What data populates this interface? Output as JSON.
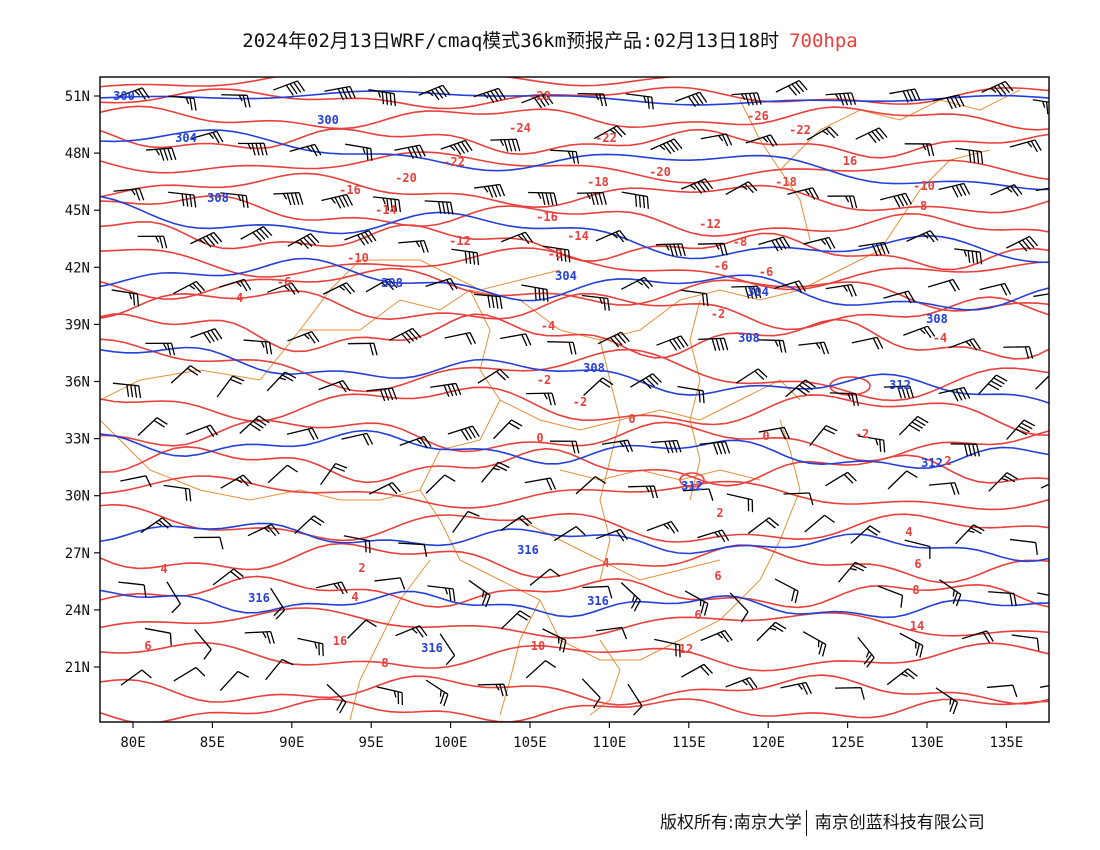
{
  "title": {
    "main": "2024年02月13日WRF/cmaq模式36km预报产品:02月13日18时",
    "level": "700hpa",
    "level_color": "#e8403c"
  },
  "colors": {
    "temperature_contour": "#e8403c",
    "height_contour": "#2440d8",
    "boundary": "#e8903a",
    "wind_barb": "#000000"
  },
  "axes": {
    "lon_ticks": [
      "80E",
      "85E",
      "90E",
      "95E",
      "100E",
      "105E",
      "110E",
      "115E",
      "120E",
      "125E",
      "130E",
      "135E"
    ],
    "lat_ticks": [
      "51N",
      "48N",
      "45N",
      "42N",
      "39N",
      "36N",
      "33N",
      "30N",
      "27N",
      "24N",
      "21N"
    ]
  },
  "temperature_labels": [
    "-28",
    "-26",
    "-24",
    "-22",
    "-22",
    "-22",
    "-20",
    "-20",
    "-18",
    "-18",
    "-16",
    "-16",
    "-14",
    "-14",
    "-12",
    "-12",
    "-10",
    "-10",
    "-8",
    "-8",
    "-8",
    "-6",
    "-6",
    "-6",
    "-4",
    "-4",
    "-4",
    "-2",
    "-2",
    "-2",
    "-2",
    "0",
    "0",
    "0",
    "2",
    "2",
    "2",
    "4",
    "4",
    "4",
    "4",
    "6",
    "6",
    "6",
    "6",
    "8",
    "8",
    "10",
    "12",
    "14",
    "16",
    "16"
  ],
  "height_labels": [
    "300",
    "300",
    "304",
    "304",
    "304",
    "308",
    "308",
    "308",
    "308",
    "308",
    "312",
    "312",
    "312",
    "316",
    "316",
    "316",
    "316"
  ],
  "footer": {
    "copyright": "版权所有:南京大学",
    "company": "南京创蓝科技有限公司"
  }
}
